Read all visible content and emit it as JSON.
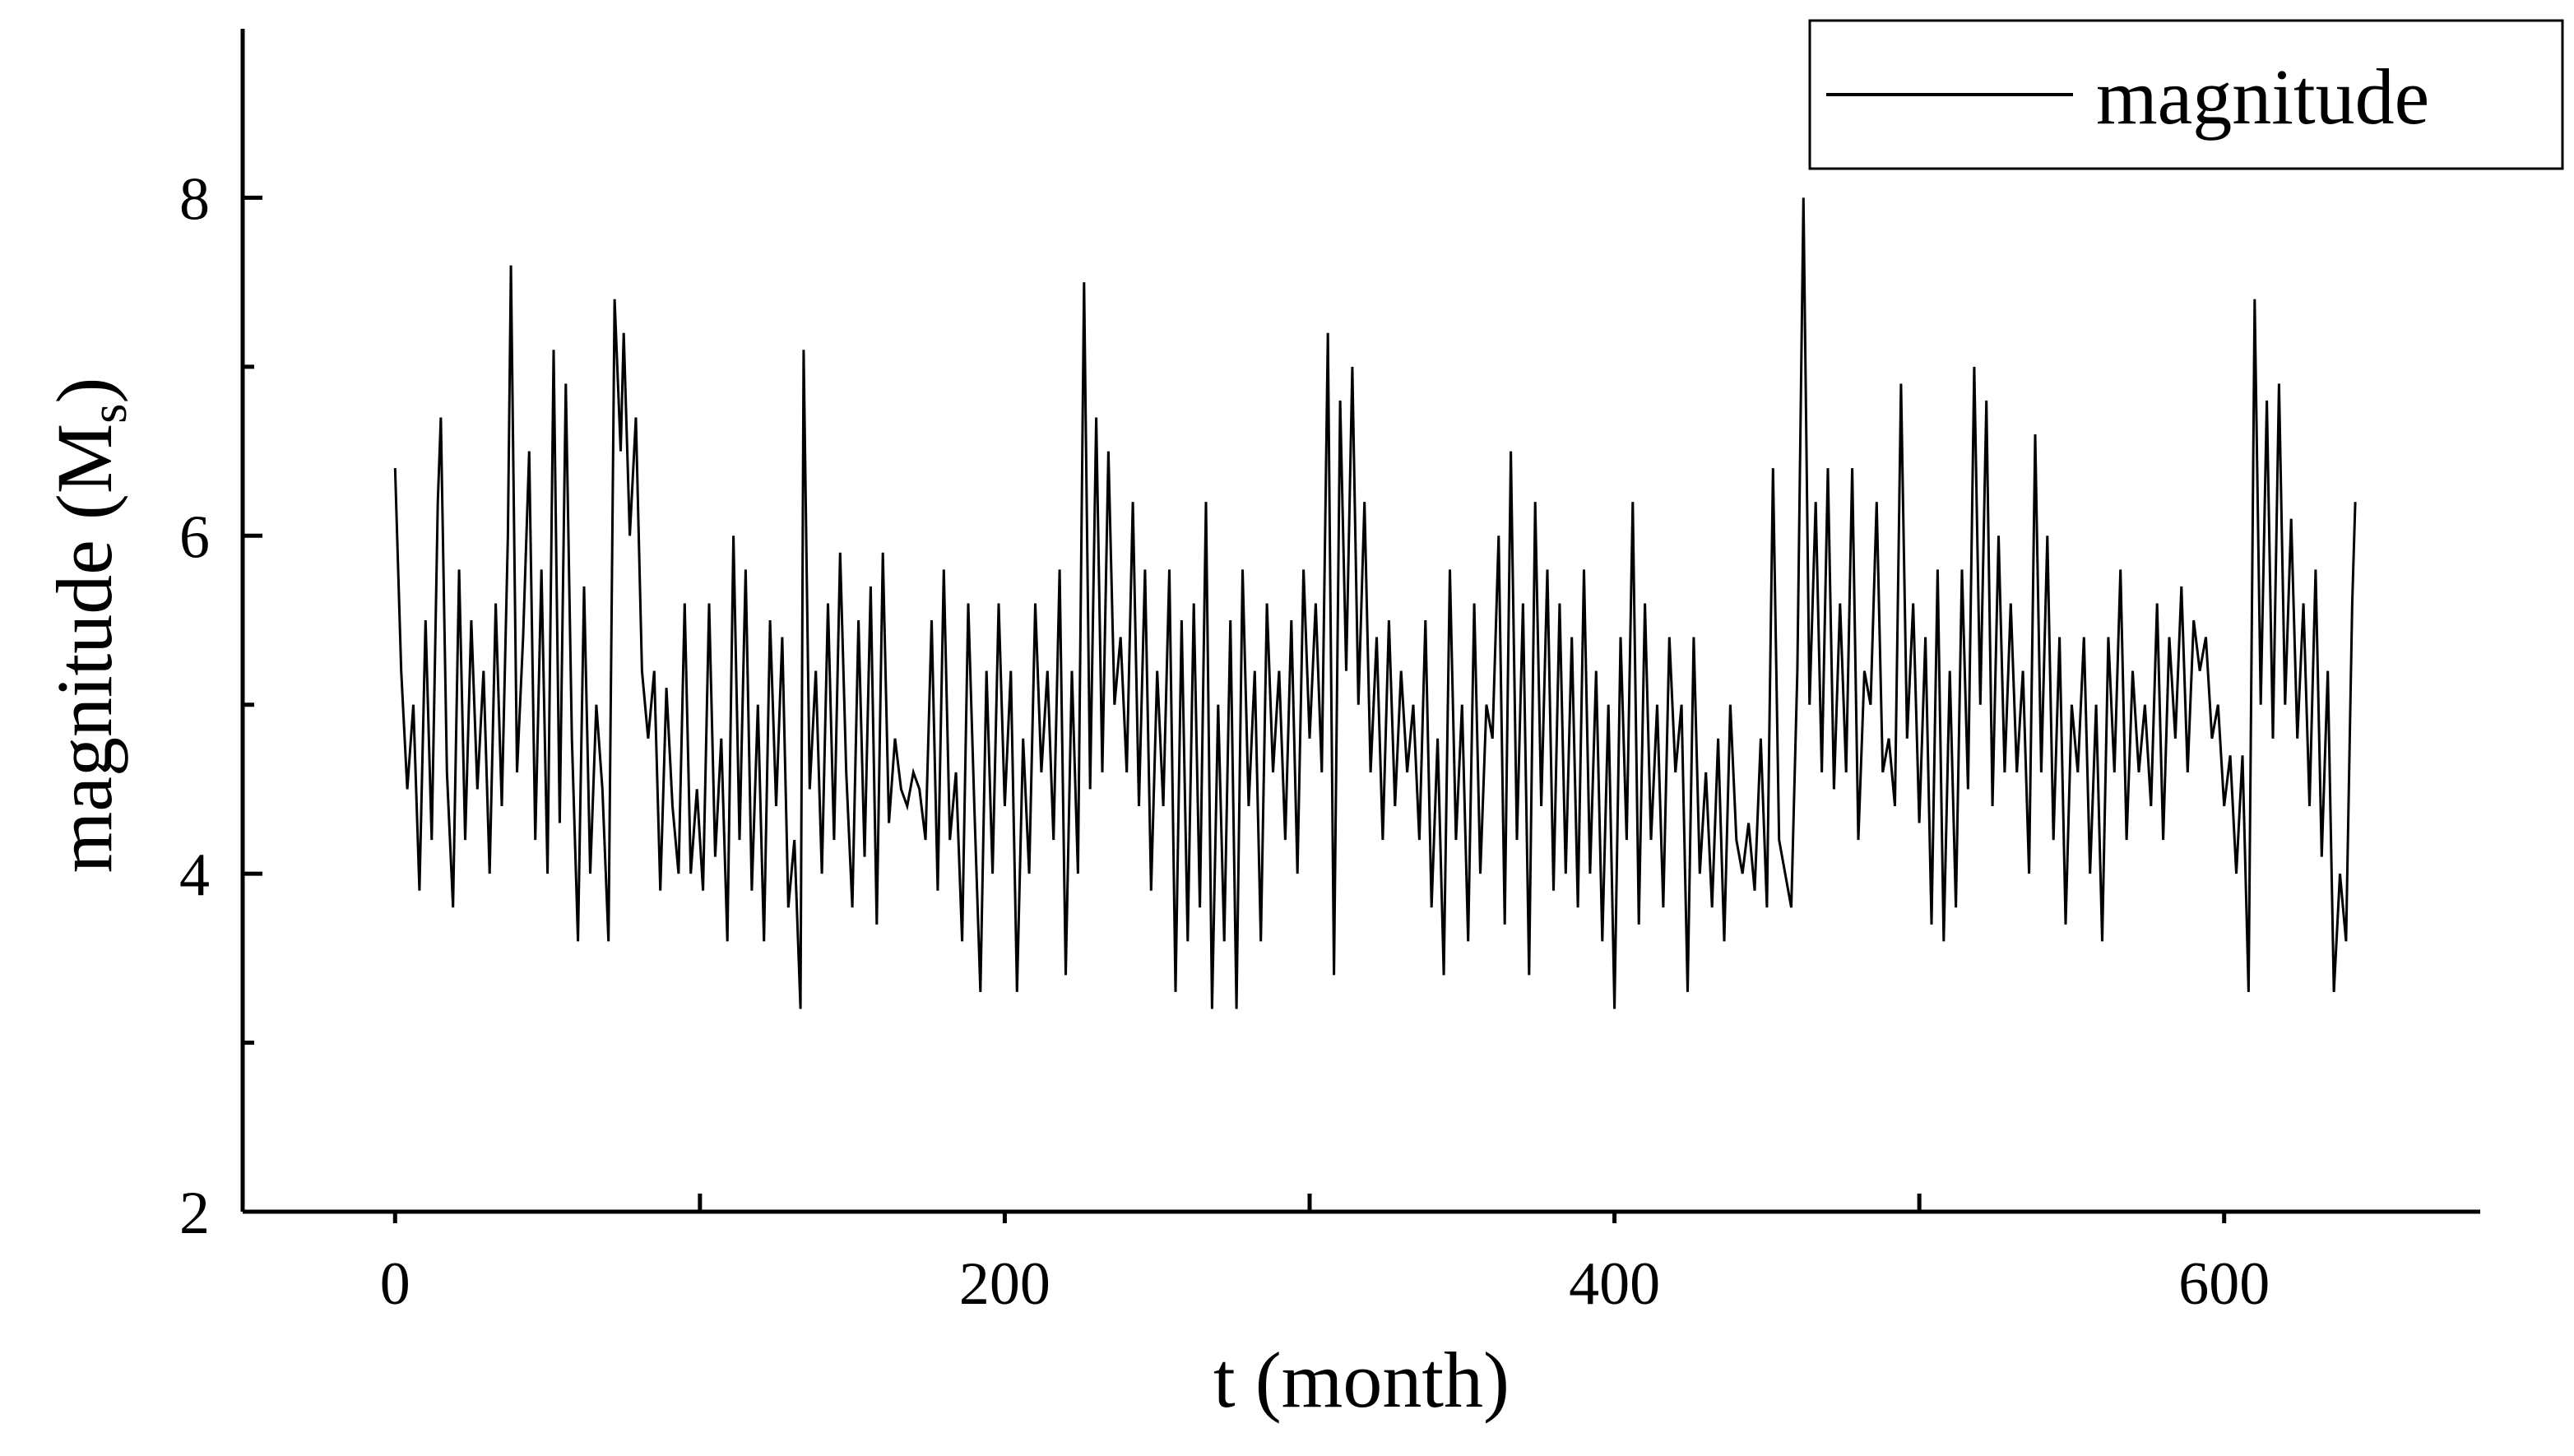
{
  "chart_data": {
    "type": "line",
    "title": "",
    "xlabel": "t (month)",
    "ylabel": "magnitude (M",
    "ylabel_subscript": "s",
    "ylabel_close": ")",
    "xlim": [
      -50,
      684
    ],
    "ylim": [
      2,
      9
    ],
    "x_ticks": [
      0,
      200,
      400,
      600
    ],
    "x_tick_labels": [
      "0",
      "200",
      "400",
      "600"
    ],
    "x_minor_ticks": [
      100,
      300,
      500
    ],
    "y_ticks": [
      2,
      4,
      6,
      8
    ],
    "y_tick_labels": [
      "2",
      "4",
      "6",
      "8"
    ],
    "y_minor_ticks": [
      3,
      5,
      7
    ],
    "grid": false,
    "legend": {
      "position": "top-right",
      "entries": [
        "magnitude"
      ]
    },
    "series": [
      {
        "name": "magnitude",
        "color": "#000000",
        "points": [
          [
            0,
            6.4
          ],
          [
            2,
            5.2
          ],
          [
            4,
            4.5
          ],
          [
            6,
            5.0
          ],
          [
            8,
            3.9
          ],
          [
            10,
            5.5
          ],
          [
            12,
            4.2
          ],
          [
            14,
            6.2
          ],
          [
            15,
            6.7
          ],
          [
            17,
            4.6
          ],
          [
            19,
            3.8
          ],
          [
            21,
            5.8
          ],
          [
            23,
            4.2
          ],
          [
            25,
            5.5
          ],
          [
            27,
            4.5
          ],
          [
            29,
            5.2
          ],
          [
            31,
            4.0
          ],
          [
            33,
            5.6
          ],
          [
            35,
            4.4
          ],
          [
            37,
            6.0
          ],
          [
            38,
            7.6
          ],
          [
            40,
            4.6
          ],
          [
            42,
            5.4
          ],
          [
            44,
            6.5
          ],
          [
            46,
            4.2
          ],
          [
            48,
            5.8
          ],
          [
            50,
            4.0
          ],
          [
            52,
            7.1
          ],
          [
            54,
            4.3
          ],
          [
            56,
            6.9
          ],
          [
            58,
            4.8
          ],
          [
            60,
            3.6
          ],
          [
            62,
            5.7
          ],
          [
            64,
            4.0
          ],
          [
            66,
            5.0
          ],
          [
            68,
            4.5
          ],
          [
            70,
            3.6
          ],
          [
            72,
            7.4
          ],
          [
            74,
            6.5
          ],
          [
            75,
            7.2
          ],
          [
            77,
            6.0
          ],
          [
            79,
            6.7
          ],
          [
            81,
            5.2
          ],
          [
            83,
            4.8
          ],
          [
            85,
            5.2
          ],
          [
            87,
            3.9
          ],
          [
            89,
            5.1
          ],
          [
            91,
            4.4
          ],
          [
            93,
            4.0
          ],
          [
            95,
            5.6
          ],
          [
            97,
            4.0
          ],
          [
            99,
            4.5
          ],
          [
            101,
            3.9
          ],
          [
            103,
            5.6
          ],
          [
            105,
            4.1
          ],
          [
            107,
            4.8
          ],
          [
            109,
            3.6
          ],
          [
            111,
            6.0
          ],
          [
            113,
            4.2
          ],
          [
            115,
            5.8
          ],
          [
            117,
            3.9
          ],
          [
            119,
            5.0
          ],
          [
            121,
            3.6
          ],
          [
            123,
            5.5
          ],
          [
            125,
            4.4
          ],
          [
            127,
            5.4
          ],
          [
            129,
            3.8
          ],
          [
            131,
            4.2
          ],
          [
            133,
            3.2
          ],
          [
            134,
            7.1
          ],
          [
            136,
            4.5
          ],
          [
            138,
            5.2
          ],
          [
            140,
            4.0
          ],
          [
            142,
            5.6
          ],
          [
            144,
            4.2
          ],
          [
            146,
            5.9
          ],
          [
            148,
            4.6
          ],
          [
            150,
            3.8
          ],
          [
            152,
            5.5
          ],
          [
            154,
            4.1
          ],
          [
            156,
            5.7
          ],
          [
            158,
            3.7
          ],
          [
            160,
            5.9
          ],
          [
            162,
            4.3
          ],
          [
            164,
            4.8
          ],
          [
            166,
            4.5
          ],
          [
            168,
            4.4
          ],
          [
            170,
            4.6
          ],
          [
            172,
            4.5
          ],
          [
            174,
            4.2
          ],
          [
            176,
            5.5
          ],
          [
            178,
            3.9
          ],
          [
            180,
            5.8
          ],
          [
            182,
            4.2
          ],
          [
            184,
            4.6
          ],
          [
            186,
            3.6
          ],
          [
            188,
            5.6
          ],
          [
            190,
            4.4
          ],
          [
            192,
            3.3
          ],
          [
            194,
            5.2
          ],
          [
            196,
            4.0
          ],
          [
            198,
            5.6
          ],
          [
            200,
            4.4
          ],
          [
            202,
            5.2
          ],
          [
            204,
            3.3
          ],
          [
            206,
            4.8
          ],
          [
            208,
            4.0
          ],
          [
            210,
            5.6
          ],
          [
            212,
            4.6
          ],
          [
            214,
            5.2
          ],
          [
            216,
            4.2
          ],
          [
            218,
            5.8
          ],
          [
            220,
            3.4
          ],
          [
            222,
            5.2
          ],
          [
            224,
            4.0
          ],
          [
            226,
            7.5
          ],
          [
            228,
            4.5
          ],
          [
            230,
            6.7
          ],
          [
            232,
            4.6
          ],
          [
            234,
            6.5
          ],
          [
            236,
            5.0
          ],
          [
            238,
            5.4
          ],
          [
            240,
            4.6
          ],
          [
            242,
            6.2
          ],
          [
            244,
            4.4
          ],
          [
            246,
            5.8
          ],
          [
            248,
            3.9
          ],
          [
            250,
            5.2
          ],
          [
            252,
            4.4
          ],
          [
            254,
            5.8
          ],
          [
            256,
            3.3
          ],
          [
            258,
            5.5
          ],
          [
            260,
            3.6
          ],
          [
            262,
            5.6
          ],
          [
            264,
            3.8
          ],
          [
            266,
            6.2
          ],
          [
            268,
            3.2
          ],
          [
            270,
            5.0
          ],
          [
            272,
            3.6
          ],
          [
            274,
            5.5
          ],
          [
            276,
            3.2
          ],
          [
            278,
            5.8
          ],
          [
            280,
            4.4
          ],
          [
            282,
            5.2
          ],
          [
            284,
            3.6
          ],
          [
            286,
            5.6
          ],
          [
            288,
            4.6
          ],
          [
            290,
            5.2
          ],
          [
            292,
            4.2
          ],
          [
            294,
            5.5
          ],
          [
            296,
            4.0
          ],
          [
            298,
            5.8
          ],
          [
            300,
            4.8
          ],
          [
            302,
            5.6
          ],
          [
            304,
            4.6
          ],
          [
            306,
            7.2
          ],
          [
            308,
            3.4
          ],
          [
            310,
            6.8
          ],
          [
            312,
            5.2
          ],
          [
            314,
            7.0
          ],
          [
            316,
            5.0
          ],
          [
            318,
            6.2
          ],
          [
            320,
            4.6
          ],
          [
            322,
            5.4
          ],
          [
            324,
            4.2
          ],
          [
            326,
            5.5
          ],
          [
            328,
            4.4
          ],
          [
            330,
            5.2
          ],
          [
            332,
            4.6
          ],
          [
            334,
            5.0
          ],
          [
            336,
            4.2
          ],
          [
            338,
            5.5
          ],
          [
            340,
            3.8
          ],
          [
            342,
            4.8
          ],
          [
            344,
            3.4
          ],
          [
            346,
            5.8
          ],
          [
            348,
            4.2
          ],
          [
            350,
            5.0
          ],
          [
            352,
            3.6
          ],
          [
            354,
            5.6
          ],
          [
            356,
            4.0
          ],
          [
            358,
            5.0
          ],
          [
            360,
            4.8
          ],
          [
            362,
            6.0
          ],
          [
            364,
            3.7
          ],
          [
            366,
            6.5
          ],
          [
            368,
            4.2
          ],
          [
            370,
            5.6
          ],
          [
            372,
            3.4
          ],
          [
            374,
            6.2
          ],
          [
            376,
            4.4
          ],
          [
            378,
            5.8
          ],
          [
            380,
            3.9
          ],
          [
            382,
            5.6
          ],
          [
            384,
            4.0
          ],
          [
            386,
            5.4
          ],
          [
            388,
            3.8
          ],
          [
            390,
            5.8
          ],
          [
            392,
            4.0
          ],
          [
            394,
            5.2
          ],
          [
            396,
            3.6
          ],
          [
            398,
            5.0
          ],
          [
            400,
            3.2
          ],
          [
            402,
            5.4
          ],
          [
            404,
            4.2
          ],
          [
            406,
            6.2
          ],
          [
            408,
            3.7
          ],
          [
            410,
            5.6
          ],
          [
            412,
            4.2
          ],
          [
            414,
            5.0
          ],
          [
            416,
            3.8
          ],
          [
            418,
            5.4
          ],
          [
            420,
            4.6
          ],
          [
            422,
            5.0
          ],
          [
            424,
            3.3
          ],
          [
            426,
            5.4
          ],
          [
            428,
            4.0
          ],
          [
            430,
            4.6
          ],
          [
            432,
            3.8
          ],
          [
            434,
            4.8
          ],
          [
            436,
            3.6
          ],
          [
            438,
            5.0
          ],
          [
            440,
            4.2
          ],
          [
            442,
            4.0
          ],
          [
            444,
            4.3
          ],
          [
            446,
            3.9
          ],
          [
            448,
            4.8
          ],
          [
            450,
            3.8
          ],
          [
            452,
            6.4
          ],
          [
            454,
            4.2
          ],
          [
            456,
            4.0
          ],
          [
            458,
            3.8
          ],
          [
            460,
            5.2
          ],
          [
            462,
            8.0
          ],
          [
            464,
            5.0
          ],
          [
            466,
            6.2
          ],
          [
            468,
            4.6
          ],
          [
            470,
            6.4
          ],
          [
            472,
            4.5
          ],
          [
            474,
            5.6
          ],
          [
            476,
            4.6
          ],
          [
            478,
            6.4
          ],
          [
            480,
            4.2
          ],
          [
            482,
            5.2
          ],
          [
            484,
            5.0
          ],
          [
            486,
            6.2
          ],
          [
            488,
            4.6
          ],
          [
            490,
            4.8
          ],
          [
            492,
            4.4
          ],
          [
            494,
            6.9
          ],
          [
            496,
            4.8
          ],
          [
            498,
            5.6
          ],
          [
            500,
            4.3
          ],
          [
            502,
            5.4
          ],
          [
            504,
            3.7
          ],
          [
            506,
            5.8
          ],
          [
            508,
            3.6
          ],
          [
            510,
            5.2
          ],
          [
            512,
            3.8
          ],
          [
            514,
            5.8
          ],
          [
            516,
            4.5
          ],
          [
            518,
            7.0
          ],
          [
            520,
            5.0
          ],
          [
            522,
            6.8
          ],
          [
            524,
            4.4
          ],
          [
            526,
            6.0
          ],
          [
            528,
            4.6
          ],
          [
            530,
            5.6
          ],
          [
            532,
            4.6
          ],
          [
            534,
            5.2
          ],
          [
            536,
            4.0
          ],
          [
            538,
            6.6
          ],
          [
            540,
            4.6
          ],
          [
            542,
            6.0
          ],
          [
            544,
            4.2
          ],
          [
            546,
            5.4
          ],
          [
            548,
            3.7
          ],
          [
            550,
            5.0
          ],
          [
            552,
            4.6
          ],
          [
            554,
            5.4
          ],
          [
            556,
            4.0
          ],
          [
            558,
            5.0
          ],
          [
            560,
            3.6
          ],
          [
            562,
            5.4
          ],
          [
            564,
            4.6
          ],
          [
            566,
            5.8
          ],
          [
            568,
            4.2
          ],
          [
            570,
            5.2
          ],
          [
            572,
            4.6
          ],
          [
            574,
            5.0
          ],
          [
            576,
            4.4
          ],
          [
            578,
            5.6
          ],
          [
            580,
            4.2
          ],
          [
            582,
            5.4
          ],
          [
            584,
            4.8
          ],
          [
            586,
            5.7
          ],
          [
            588,
            4.6
          ],
          [
            590,
            5.5
          ],
          [
            592,
            5.2
          ],
          [
            594,
            5.4
          ],
          [
            596,
            4.8
          ],
          [
            598,
            5.0
          ],
          [
            600,
            4.4
          ],
          [
            602,
            4.7
          ],
          [
            604,
            4.0
          ],
          [
            606,
            4.7
          ],
          [
            608,
            3.3
          ],
          [
            610,
            7.4
          ],
          [
            612,
            5.0
          ],
          [
            614,
            6.8
          ],
          [
            616,
            4.8
          ],
          [
            618,
            6.9
          ],
          [
            620,
            5.0
          ],
          [
            622,
            6.1
          ],
          [
            624,
            4.8
          ],
          [
            626,
            5.6
          ],
          [
            628,
            4.4
          ],
          [
            630,
            5.8
          ],
          [
            632,
            4.1
          ],
          [
            634,
            5.2
          ],
          [
            636,
            3.3
          ],
          [
            638,
            4.0
          ],
          [
            640,
            3.6
          ],
          [
            642,
            5.6
          ],
          [
            643,
            6.2
          ]
        ]
      }
    ]
  }
}
